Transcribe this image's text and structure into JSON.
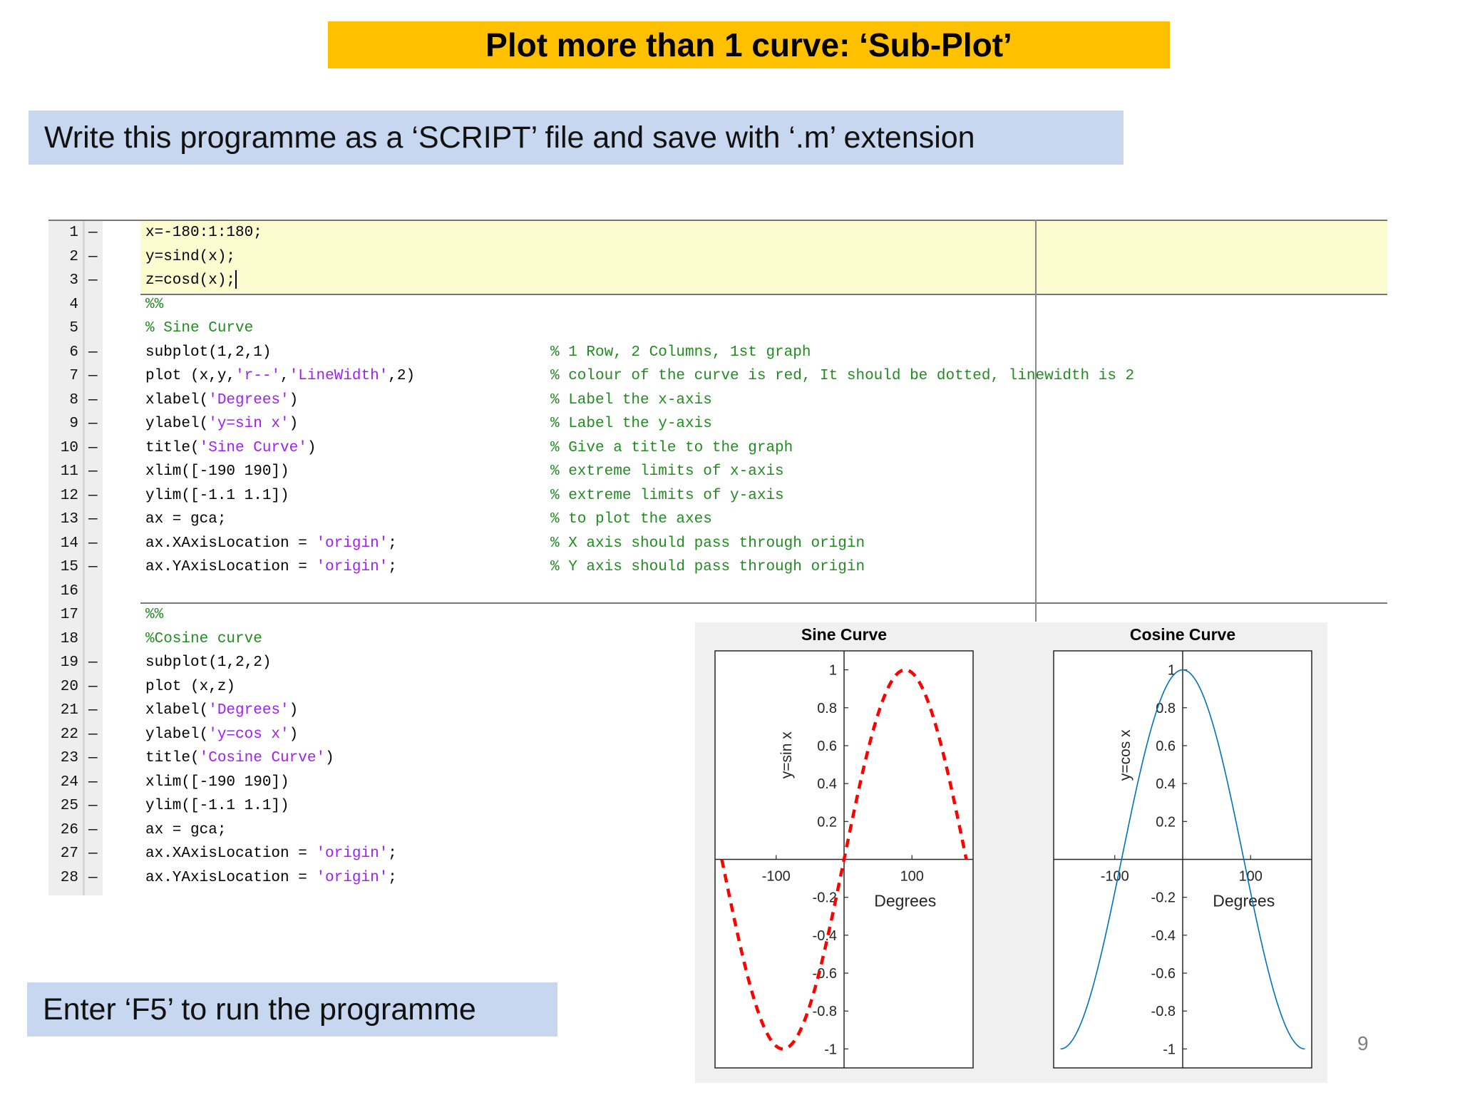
{
  "slide": {
    "title": "Plot more than 1 curve: ‘Sub-Plot’",
    "instruction_top": "Write this programme as a  ‘SCRIPT’ file and save with ‘.m’ extension",
    "instruction_bottom": "Enter ‘F5’ to run the programme",
    "page_number": "9"
  },
  "editor": {
    "lines": [
      {
        "n": "1",
        "dash": "—",
        "code": "x=-180:1:180;",
        "comment": ""
      },
      {
        "n": "2",
        "dash": "—",
        "code": "y=sind(x);",
        "comment": ""
      },
      {
        "n": "3",
        "dash": "—",
        "code": "z=cosd(x);",
        "comment": ""
      },
      {
        "n": "4",
        "dash": "",
        "code": "%%",
        "comment": ""
      },
      {
        "n": "5",
        "dash": "",
        "code": "% Sine Curve",
        "comment": ""
      },
      {
        "n": "6",
        "dash": "—",
        "code": "subplot(1,2,1)",
        "comment": "% 1 Row, 2 Columns, 1st graph"
      },
      {
        "n": "7",
        "dash": "—",
        "code": "plot (x,y,'r--','LineWidth',2)",
        "comment": "% colour of the curve is red, It should be dotted, linewidth is 2"
      },
      {
        "n": "8",
        "dash": "—",
        "code": "xlabel('Degrees')",
        "comment": "% Label the x-axis"
      },
      {
        "n": "9",
        "dash": "—",
        "code": "ylabel('y=sin x')",
        "comment": "% Label the y-axis"
      },
      {
        "n": "10",
        "dash": "—",
        "code": "title('Sine Curve')",
        "comment": "% Give a title to the graph"
      },
      {
        "n": "11",
        "dash": "—",
        "code": "xlim([-190 190])",
        "comment": "% extreme limits of x-axis"
      },
      {
        "n": "12",
        "dash": "—",
        "code": "ylim([-1.1 1.1])",
        "comment": "% extreme limits of y-axis"
      },
      {
        "n": "13",
        "dash": "—",
        "code": "ax = gca;",
        "comment": "% to plot the axes"
      },
      {
        "n": "14",
        "dash": "—",
        "code": "ax.XAxisLocation = 'origin';",
        "comment": "% X axis should pass through origin"
      },
      {
        "n": "15",
        "dash": "—",
        "code": "ax.YAxisLocation = 'origin';",
        "comment": "% Y axis should pass through origin"
      },
      {
        "n": "16",
        "dash": "",
        "code": "",
        "comment": ""
      },
      {
        "n": "17",
        "dash": "",
        "code": "%%",
        "comment": ""
      },
      {
        "n": "18",
        "dash": "",
        "code": "%Cosine curve",
        "comment": ""
      },
      {
        "n": "19",
        "dash": "—",
        "code": "subplot(1,2,2)",
        "comment": ""
      },
      {
        "n": "20",
        "dash": "—",
        "code": "plot (x,z)",
        "comment": ""
      },
      {
        "n": "21",
        "dash": "—",
        "code": "xlabel('Degrees')",
        "comment": ""
      },
      {
        "n": "22",
        "dash": "—",
        "code": "ylabel('y=cos x')",
        "comment": ""
      },
      {
        "n": "23",
        "dash": "—",
        "code": "title('Cosine Curve')",
        "comment": ""
      },
      {
        "n": "24",
        "dash": "—",
        "code": "xlim([-190 190])",
        "comment": ""
      },
      {
        "n": "25",
        "dash": "—",
        "code": "ylim([-1.1 1.1])",
        "comment": ""
      },
      {
        "n": "26",
        "dash": "—",
        "code": "ax = gca;",
        "comment": ""
      },
      {
        "n": "27",
        "dash": "—",
        "code": "ax.XAxisLocation = 'origin';",
        "comment": ""
      },
      {
        "n": "28",
        "dash": "—",
        "code": "ax.YAxisLocation = 'origin';",
        "comment": ""
      }
    ],
    "colors": {
      "string": "#a020f0",
      "comment": "#228b22",
      "cell_highlight": "#fbfbcf"
    }
  },
  "chart_data": [
    {
      "type": "line",
      "title": "Sine Curve",
      "xlabel": "Degrees",
      "ylabel": "y=sin x",
      "xlim": [
        -190,
        190
      ],
      "ylim": [
        -1.1,
        1.1
      ],
      "xticks": [
        -100,
        100
      ],
      "yticks": [
        -1,
        -0.8,
        -0.6,
        -0.4,
        -0.2,
        0.2,
        0.4,
        0.6,
        0.8,
        1
      ],
      "x_range": [
        -180,
        180
      ],
      "function": "sind",
      "line_style": "dashed",
      "color": "#ff0000",
      "axis_location": "origin"
    },
    {
      "type": "line",
      "title": "Cosine Curve",
      "xlabel": "Degrees",
      "ylabel": "y=cos x",
      "xlim": [
        -190,
        190
      ],
      "ylim": [
        -1.1,
        1.1
      ],
      "xticks": [
        -100,
        100
      ],
      "yticks": [
        -1,
        -0.8,
        -0.6,
        -0.4,
        -0.2,
        0.2,
        0.4,
        0.6,
        0.8,
        1
      ],
      "x_range": [
        -180,
        180
      ],
      "function": "cosd",
      "line_style": "solid",
      "color": "#0072bd",
      "axis_location": "origin"
    }
  ]
}
